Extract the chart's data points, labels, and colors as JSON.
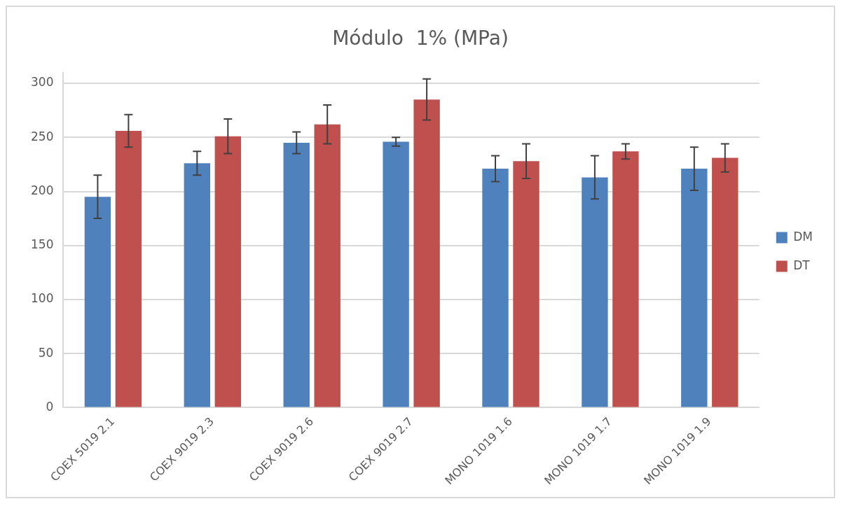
{
  "chart_data": {
    "type": "bar",
    "title": "Módulo  1% (MPa)",
    "categories": [
      "COEX 5019 2.1",
      "COEX 9019 2.3",
      "COEX 9019 2.6",
      "COEX 9019 2.7",
      "MONO 1019 1.6",
      "MONO 1019 1.7",
      "MONO 1019 1.9"
    ],
    "series": [
      {
        "name": "DM",
        "color": "#4f81bd",
        "values": [
          195,
          226,
          245,
          246,
          221,
          213,
          221
        ],
        "errors": [
          20,
          11,
          10,
          4,
          12,
          20,
          20
        ]
      },
      {
        "name": "DT",
        "color": "#c0504d",
        "values": [
          256,
          251,
          262,
          285,
          228,
          237,
          231
        ],
        "errors": [
          15,
          16,
          18,
          19,
          16,
          7,
          13
        ]
      }
    ],
    "ylim": [
      0,
      310
    ],
    "yticks": [
      0,
      50,
      100,
      150,
      200,
      250,
      300
    ],
    "grid": "y",
    "legend": "right"
  }
}
